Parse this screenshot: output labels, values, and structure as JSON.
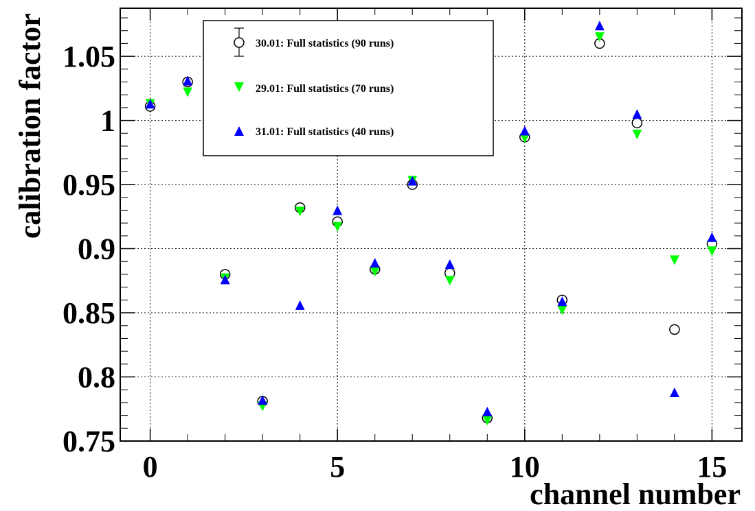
{
  "chart_data": {
    "type": "scatter",
    "title": "",
    "xlabel": "channel number",
    "ylabel": "calibration factor",
    "xlim": [
      -0.8,
      15.8
    ],
    "ylim": [
      0.75,
      1.0875
    ],
    "x_ticks": [
      0,
      5,
      10,
      15
    ],
    "x_tick_labels": [
      "0",
      "5",
      "10",
      "15"
    ],
    "y_ticks": [
      0.75,
      0.8,
      0.85,
      0.9,
      0.95,
      1.0,
      1.05
    ],
    "y_tick_labels": [
      "0.75",
      "0.8",
      "0.85",
      "0.9",
      "0.95",
      "1",
      "1.05"
    ],
    "grid": true,
    "legend_position": "top-center",
    "x": [
      0,
      1,
      2,
      3,
      4,
      5,
      6,
      7,
      8,
      9,
      10,
      11,
      12,
      13,
      14,
      15
    ],
    "series": [
      {
        "name": "30.01: Full statistics (90 runs)",
        "marker": "open-circle",
        "color": "#000000",
        "values": [
          1.011,
          1.03,
          0.88,
          0.781,
          0.932,
          0.921,
          0.884,
          0.95,
          0.881,
          0.768,
          0.987,
          0.86,
          1.06,
          0.998,
          0.837,
          0.904
        ]
      },
      {
        "name": "29.01: Full statistics (70 runs)",
        "marker": "triangle-down",
        "color": "#00ff00",
        "values": [
          1.013,
          1.022,
          0.877,
          0.777,
          0.929,
          0.917,
          0.882,
          0.953,
          0.875,
          0.766,
          0.986,
          0.852,
          1.065,
          0.989,
          0.891,
          0.898
        ]
      },
      {
        "name": "31.01: Full statistics (40 runs)",
        "marker": "triangle-up",
        "color": "#0000ff",
        "values": [
          1.013,
          1.031,
          0.876,
          0.782,
          0.856,
          0.93,
          0.889,
          0.953,
          0.888,
          0.773,
          0.992,
          0.859,
          1.074,
          1.005,
          0.788,
          0.909
        ]
      }
    ]
  }
}
